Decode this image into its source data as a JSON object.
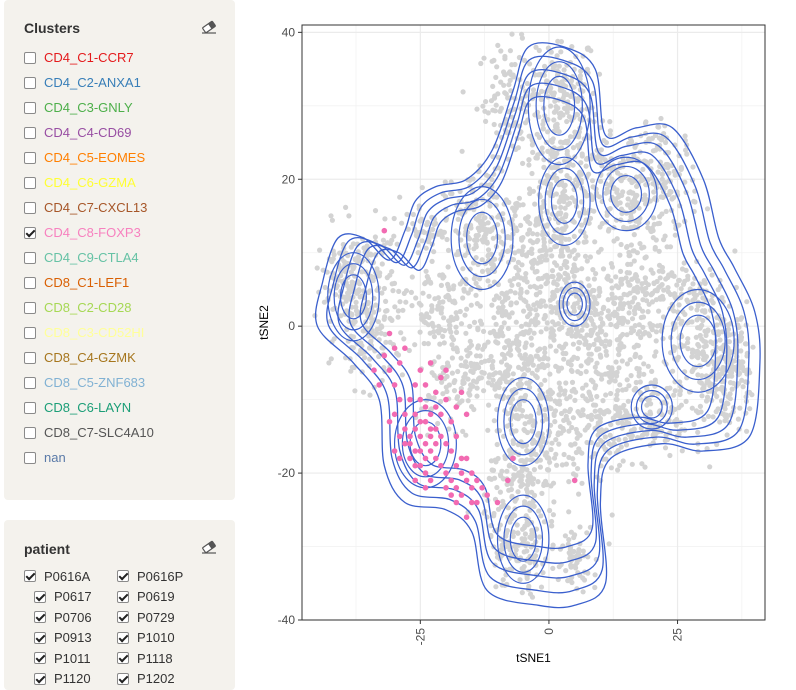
{
  "clusters": {
    "title": "Clusters",
    "items": [
      {
        "label": "CD4_C1-CCR7",
        "color": "#e41a1c",
        "checked": false
      },
      {
        "label": "CD4_C2-ANXA1",
        "color": "#377eb8",
        "checked": false
      },
      {
        "label": "CD4_C3-GNLY",
        "color": "#4daf4a",
        "checked": false
      },
      {
        "label": "CD4_C4-CD69",
        "color": "#984ea3",
        "checked": false
      },
      {
        "label": "CD4_C5-EOMES",
        "color": "#ff7f00",
        "checked": false
      },
      {
        "label": "CD4_C6-GZMA",
        "color": "#ffff33",
        "checked": false
      },
      {
        "label": "CD4_C7-CXCL13",
        "color": "#a65628",
        "checked": false
      },
      {
        "label": "CD4_C8-FOXP3",
        "color": "#f781bf",
        "checked": true
      },
      {
        "label": "CD4_C9-CTLA4",
        "color": "#66c2a5",
        "checked": false
      },
      {
        "label": "CD8_C1-LEF1",
        "color": "#d95f02",
        "checked": false
      },
      {
        "label": "CD8_C2-CD28",
        "color": "#a6d854",
        "checked": false
      },
      {
        "label": "CD8_C3-CD52HI",
        "color": "#ffff99",
        "checked": false
      },
      {
        "label": "CD8_C4-GZMK",
        "color": "#a6761d",
        "checked": false
      },
      {
        "label": "CD8_C5-ZNF683",
        "color": "#80b1d3",
        "checked": false
      },
      {
        "label": "CD8_C6-LAYN",
        "color": "#1b9e77",
        "checked": false
      },
      {
        "label": "CD8_C7-SLC4A10",
        "color": "#555555",
        "checked": false
      },
      {
        "label": "nan",
        "color": "#5a7aa8",
        "checked": false
      }
    ]
  },
  "patient": {
    "title": "patient",
    "items": [
      {
        "label": "P0616A",
        "checked": true
      },
      {
        "label": "P0616P",
        "checked": true
      },
      {
        "label": "P0617",
        "checked": true
      },
      {
        "label": "P0619",
        "checked": true
      },
      {
        "label": "P0706",
        "checked": true
      },
      {
        "label": "P0729",
        "checked": true
      },
      {
        "label": "P0913",
        "checked": true
      },
      {
        "label": "P1010",
        "checked": true
      },
      {
        "label": "P1011",
        "checked": true
      },
      {
        "label": "P1118",
        "checked": true
      },
      {
        "label": "P1120",
        "checked": true
      },
      {
        "label": "P1202",
        "checked": true
      }
    ]
  },
  "chart_data": {
    "type": "scatter",
    "title": "",
    "xlabel": "tSNE1",
    "ylabel": "tSNE2",
    "xlim": [
      -48,
      42
    ],
    "ylim": [
      -40,
      41
    ],
    "x_ticks": [
      -25,
      0,
      25
    ],
    "y_ticks": [
      -40,
      -20,
      0,
      20,
      40
    ],
    "x_tick_labels": [
      "-25",
      "0",
      "25"
    ],
    "y_tick_labels": [
      "-40",
      "-20",
      "0",
      "20",
      "40"
    ],
    "grid": true,
    "background_color": "#d3d3d3",
    "highlight_color": "#f26bb2",
    "contour_color": "#3a5fcd",
    "series": [
      {
        "name": "CD4_C8-FOXP3",
        "color": "#f26bb2",
        "points": [
          [
            -25,
            -15
          ],
          [
            -24,
            -16
          ],
          [
            -26,
            -14
          ],
          [
            -23,
            -15
          ],
          [
            -25,
            -17
          ],
          [
            -27,
            -15
          ],
          [
            -24,
            -13
          ],
          [
            -22,
            -16
          ],
          [
            -26,
            -17
          ],
          [
            -25,
            -13
          ],
          [
            -23,
            -14
          ],
          [
            -24,
            -18
          ],
          [
            -27,
            -16
          ],
          [
            -22,
            -14
          ],
          [
            -26,
            -12
          ],
          [
            -28,
            -14
          ],
          [
            -21,
            -15
          ],
          [
            -25,
            -19
          ],
          [
            -23,
            -17
          ],
          [
            -24,
            -11
          ],
          [
            -27,
            -18
          ],
          [
            -20,
            -16
          ],
          [
            -28,
            -16
          ],
          [
            -26,
            -19
          ],
          [
            -22,
            -18
          ],
          [
            -24,
            -20
          ],
          [
            -21,
            -12
          ],
          [
            -29,
            -15
          ],
          [
            -25,
            -10
          ],
          [
            -23,
            -12
          ],
          [
            -19,
            -17
          ],
          [
            -18,
            -19
          ],
          [
            -17,
            -20
          ],
          [
            -19,
            -21
          ],
          [
            -18,
            -22
          ],
          [
            -16,
            -18
          ],
          [
            -20,
            -20
          ],
          [
            -17,
            -23
          ],
          [
            -16,
            -21
          ],
          [
            -19,
            -23
          ],
          [
            -15,
            -20
          ],
          [
            -18,
            -24
          ],
          [
            -20,
            -22
          ],
          [
            -17,
            -18
          ],
          [
            -15,
            -22
          ],
          [
            -14,
            -21
          ],
          [
            -29,
            -10
          ],
          [
            -28,
            -12
          ],
          [
            -27,
            -10
          ],
          [
            -26,
            -8
          ],
          [
            -24,
            -8
          ],
          [
            -22,
            -9
          ],
          [
            -20,
            -10
          ],
          [
            -18,
            -11
          ],
          [
            -30,
            -8
          ],
          [
            -31,
            -6
          ],
          [
            -29,
            -5
          ],
          [
            -25,
            -6
          ],
          [
            -23,
            -5
          ],
          [
            -21,
            -7
          ],
          [
            -31,
            -1
          ],
          [
            -30,
            -3
          ],
          [
            -32,
            -4
          ],
          [
            -28,
            -3
          ],
          [
            -17,
            -9
          ],
          [
            -16,
            -12
          ],
          [
            -18,
            -15
          ],
          [
            -21,
            -19
          ],
          [
            -30,
            -12
          ],
          [
            -31,
            -13
          ],
          [
            -14,
            -24
          ],
          [
            -13,
            -22
          ],
          [
            -16,
            -26
          ],
          [
            -15,
            -24
          ],
          [
            -12,
            -23
          ],
          [
            -23,
            -21
          ],
          [
            -26,
            -21
          ],
          [
            -29,
            -18
          ],
          [
            -30,
            -17
          ],
          [
            -24,
            -22
          ],
          [
            -32,
            13
          ],
          [
            -10,
            -24
          ],
          [
            -8,
            -21
          ],
          [
            5,
            -21
          ],
          [
            -7,
            -18
          ],
          [
            -33,
            -8
          ],
          [
            -34,
            -6
          ],
          [
            -20,
            -6
          ],
          [
            -19,
            -13
          ],
          [
            -22,
            -11
          ]
        ]
      }
    ]
  }
}
